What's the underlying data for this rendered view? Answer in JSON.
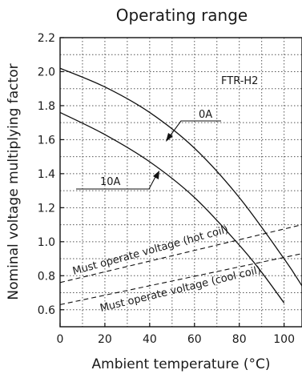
{
  "chart_data": {
    "type": "line",
    "title": "Operating range",
    "xlabel": "Ambient temperature (°C)",
    "ylabel": "Nominal voltage multiplying factor",
    "xlim": [
      0,
      108
    ],
    "ylim": [
      0.5,
      2.2
    ],
    "xticks": [
      0,
      20,
      40,
      60,
      80,
      100
    ],
    "yticks": [
      0.6,
      0.8,
      1.0,
      1.2,
      1.4,
      1.6,
      1.8,
      2.0,
      2.2
    ],
    "ytick_labels": [
      "0.6",
      "0.8",
      "1.0",
      "1.2",
      "1.4",
      "1.6",
      "1.8",
      "2.0",
      "2.2"
    ],
    "xtick_labels": [
      "0",
      "20",
      "40",
      "60",
      "80",
      "100"
    ],
    "grid": true,
    "model_label": "FTR-H2",
    "series": [
      {
        "name": "0A",
        "style": "solid",
        "x": [
          0,
          20,
          40,
          60,
          80,
          100,
          108
        ],
        "y": [
          2.02,
          1.91,
          1.76,
          1.55,
          1.26,
          0.9,
          0.74
        ]
      },
      {
        "name": "10A",
        "style": "solid",
        "x": [
          0,
          20,
          40,
          60,
          80,
          90,
          100
        ],
        "y": [
          1.76,
          1.63,
          1.47,
          1.26,
          0.98,
          0.82,
          0.64
        ]
      },
      {
        "name": "Must operate voltage (hot coil)",
        "style": "dashed",
        "x": [
          0,
          108
        ],
        "y": [
          0.76,
          1.1
        ]
      },
      {
        "name": "Must operate voltage (cool coil)",
        "style": "dashed",
        "x": [
          0,
          108
        ],
        "y": [
          0.63,
          0.93
        ]
      }
    ]
  }
}
